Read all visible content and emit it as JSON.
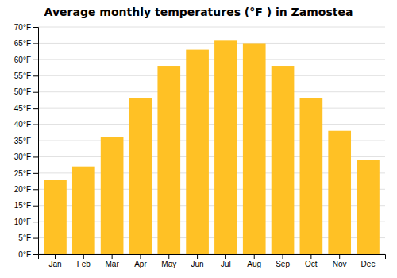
{
  "chart_data": {
    "type": "bar",
    "title": "Average monthly temperatures (°F ) in Zamostea",
    "categories": [
      "Jan",
      "Feb",
      "Mar",
      "Apr",
      "May",
      "Jun",
      "Jul",
      "Aug",
      "Sep",
      "Oct",
      "Nov",
      "Dec"
    ],
    "values": [
      23,
      27,
      36,
      48,
      58,
      63,
      66,
      65,
      58,
      48,
      38,
      29
    ],
    "color": "#FFC125",
    "ylim": [
      0,
      70
    ],
    "yticks": [
      {
        "value": 0,
        "label": "0°F"
      },
      {
        "value": 5,
        "label": "5°F"
      },
      {
        "value": 10,
        "label": "10°F"
      },
      {
        "value": 15,
        "label": "15°F"
      },
      {
        "value": 20,
        "label": "20°F"
      },
      {
        "value": 25,
        "label": "25°F"
      },
      {
        "value": 30,
        "label": "30°F"
      },
      {
        "value": 35,
        "label": "35°F"
      },
      {
        "value": 40,
        "label": "40°F"
      },
      {
        "value": 45,
        "label": "45°F"
      },
      {
        "value": 50,
        "label": "50°F"
      },
      {
        "value": 55,
        "label": "55°F"
      },
      {
        "value": 60,
        "label": "60°F"
      },
      {
        "value": 65,
        "label": "65°F"
      },
      {
        "value": 70,
        "label": "70°F"
      }
    ],
    "grid": true
  }
}
